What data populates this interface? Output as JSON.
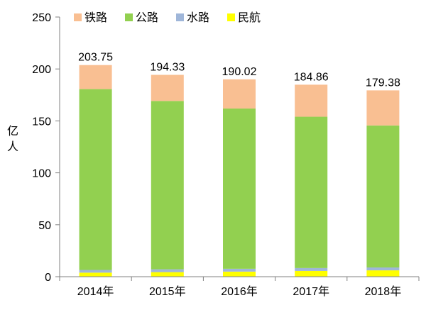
{
  "chart_data": {
    "type": "bar",
    "stacked": true,
    "categories": [
      "2014年",
      "2015年",
      "2016年",
      "2017年",
      "2018年"
    ],
    "series": [
      {
        "name": "民航",
        "color": "#ffff00",
        "values": [
          3.9,
          4.4,
          4.9,
          5.5,
          6.1
        ]
      },
      {
        "name": "水路",
        "color": "#9fb6d9",
        "values": [
          2.6,
          2.7,
          2.7,
          2.8,
          2.8
        ]
      },
      {
        "name": "公路",
        "color": "#92d050",
        "values": [
          174.1,
          162.1,
          154.3,
          145.7,
          136.7
        ]
      },
      {
        "name": "铁路",
        "color": "#f9bf92",
        "values": [
          23.15,
          25.13,
          28.12,
          30.86,
          33.78
        ]
      }
    ],
    "totals": [
      "203.75",
      "194.33",
      "190.02",
      "184.86",
      "179.38"
    ],
    "ylabel": "亿人",
    "ylim": [
      0,
      250
    ],
    "yticks": [
      0,
      50,
      100,
      150,
      200,
      250
    ],
    "legend_order": [
      "铁路",
      "公路",
      "水路",
      "民航"
    ],
    "legend_position": "top",
    "grid": false
  }
}
